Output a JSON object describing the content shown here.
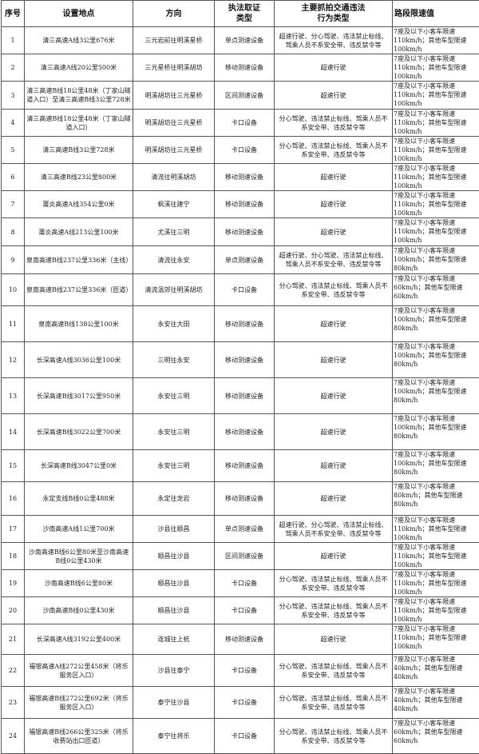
{
  "headers": [
    "序号",
    "设置地点",
    "方向",
    "执法取证类型",
    "主要抓拍交通违法行为类型",
    "路段限速值"
  ],
  "header_lines": {
    "c3": [
      "执法取证",
      "类型"
    ],
    "c4": [
      "主要抓拍交通违法",
      "行为类型"
    ]
  },
  "rows": [
    [
      "1",
      "清三高速A线3公里676米",
      "三元岩前往明溪星桥",
      "单点测速设备",
      "超速行驶、分心驾驶、违法禁止标线、驾乘人员不系安全带、违反禁令等",
      "7座及以下小客车限速110km/h；其他车型限速100km/h"
    ],
    [
      "2",
      "清三高速A线20公里500米",
      "三元星桥往明溪胡坊",
      "移动测速设备",
      "超速行驶",
      "7座及以下小客车限速110km/h；其他车型限速100km/h"
    ],
    [
      "3",
      "清三高速B线18公里48米（丁家山隧道入口）至清三高速B线3公里728米",
      "明溪胡坊往三元星桥",
      "区间测速设备",
      "超速行驶",
      "7座及以下小客车限速110km/h；其他车型限速100km/h"
    ],
    [
      "4",
      "清三高速B线18公里48米（丁家山隧道入口）",
      "明溪胡坊往三元星桥",
      "卡口设备",
      "分心驾驶、违法禁止标线、驾乘人员不系安全带、违反禁令等",
      "7座及以下小客车限速110km/h；其他车型限速100km/h"
    ],
    [
      "5",
      "清三高速B线3公里728米",
      "明溪胡坊往三元星桥",
      "卡口设备",
      "分心驾驶、违法禁止标线、驾乘人员不系安全带、违反禁令等",
      "7座及以下小客车限速110km/h；其他车型限速100km/h"
    ],
    [
      "6",
      "清三高速B线23公里800米",
      "清流往明溪胡坊",
      "移动测速设备",
      "超速行驶",
      "7座及以下小客车限速110km/h；其他车型限速100km/h"
    ],
    [
      "7",
      "莆炎高速A线354公里0米",
      "枫溪往建宁",
      "移动测速设备",
      "超速行驶",
      "7座及以下小客车限速110km/h；其他车型限速100km/h"
    ],
    [
      "8",
      "莆炎高速A线213公里100米",
      "尤溪往三明",
      "移动测速设备",
      "超速行驶",
      "7座及以下小客车限速110km/h；其他车型限速100km/h"
    ],
    [
      "9",
      "泉南高速B线237公里336米（主线）",
      "清流往永安",
      "单点测速设备",
      "超速行驶、分心驾驶、违法禁止标线、驾乘人员不系安全带、违反禁令等",
      "7座及以下小客车限速100km/h；其他车型限速80km/h"
    ],
    [
      "10",
      "泉南高速B线237公里336米（匝道）",
      "清流温郊往明溪胡坊",
      "卡口设备",
      "分心驾驶、违法禁止标线、驾乘人员不系安全带、违反禁令等",
      "7座及以下小客车限速60km/h；其他车型限速60km/h"
    ],
    [
      "11",
      "泉南高速B线138公里100米",
      "永安往大田",
      "移动测速设备",
      "超速行驶",
      "7座及以下小客车限速100km/h；其他车型限速80km/h"
    ],
    [
      "12",
      "长深高速A线3036公里100米",
      "三明往永安",
      "移动测速设备",
      "超速行驶",
      "7座及以下小客车限速100km/h；其他车型限速80km/h"
    ],
    [
      "13",
      "长深高速B线3017公里950米",
      "永安往三明",
      "移动测速设备",
      "超速行驶",
      "7座及以下小客车限速100km/h；其他车型限速80km/h"
    ],
    [
      "14",
      "长深高速B线3022公里700米",
      "永安往三明",
      "移动测速设备",
      "超速行驶",
      "7座及以下小客车限速100km/h；其他车型限速80km/h"
    ],
    [
      "15",
      "长深高速B线3047公里0米",
      "永安往三明",
      "移动测速设备",
      "超速行驶",
      "7座及以下小客车限速100km/h；其他车型限速80km/h"
    ],
    [
      "16",
      "永定支线B线0公里488米",
      "永定往龙岩",
      "移动测速设备",
      "超速行驶",
      "7座及以下小客车限速80km/h；其他车型限速80km/h"
    ],
    [
      "17",
      "沙南高速A线1公里700米",
      "沙县往顺昌",
      "单点测速设备",
      "超速行驶、分心驾驶、违法禁止标线、驾乘人员不系安全带、违反禁令等",
      "7座及以下小客车限速110km/h；其他车型限速100km/h"
    ],
    [
      "18",
      "沙南高速B线6公里80米至沙南高速B线0公里430米",
      "顺昌往沙县",
      "区间测速设备",
      "超速行驶",
      "7座及以下小客车限速110km/h；其他车型限速100km/h"
    ],
    [
      "19",
      "沙南高速B线6公里80米",
      "顺昌往沙县",
      "卡口设备",
      "分心驾驶、违法禁止标线、驾乘人员不系安全带、违反禁令等",
      "7座及以下小客车限速110km/h；其他车型限速100km/h"
    ],
    [
      "20",
      "沙南高速B线0公里430米",
      "顺昌往沙县",
      "卡口设备",
      "分心驾驶、违法禁止标线、驾乘人员不系安全带、违反禁令等",
      "7座及以下小客车限速110km/h；其他车型限速100km/h"
    ],
    [
      "21",
      "长深高速A线3192公里400米",
      "连城往上杭",
      "移动测速设备",
      "超速行驶",
      "7座及以下小客车限速110km/h；其他车型限速100km/h"
    ],
    [
      "22",
      "福银高速A线272公里458米（将乐服务区入口）",
      "沙县往泰宁",
      "卡口设备",
      "分心驾驶、违法禁止标线、驾乘人员不系安全带、违反禁令等",
      "7座及以下小客车限速40km/h；其他车型限速40km/h"
    ],
    [
      "23",
      "福银高速B线272公里692米（将乐服务区入口）",
      "泰宁往沙县",
      "卡口设备",
      "分心驾驶、违法禁止标线、驾乘人员不系安全带、违反禁令等",
      "7座及以下小客车限速40km/h；其他车型限速40km/h"
    ],
    [
      "24",
      "福银高速B线266公里325米（将乐收费站出口匝道）",
      "泰宁往将乐",
      "卡口设备",
      "分心驾驶、违法禁止标线、驾乘人员不系安全带、违反禁令等",
      "7座及以下小客车限速60km/h；其他车型限速60km/h"
    ]
  ]
}
